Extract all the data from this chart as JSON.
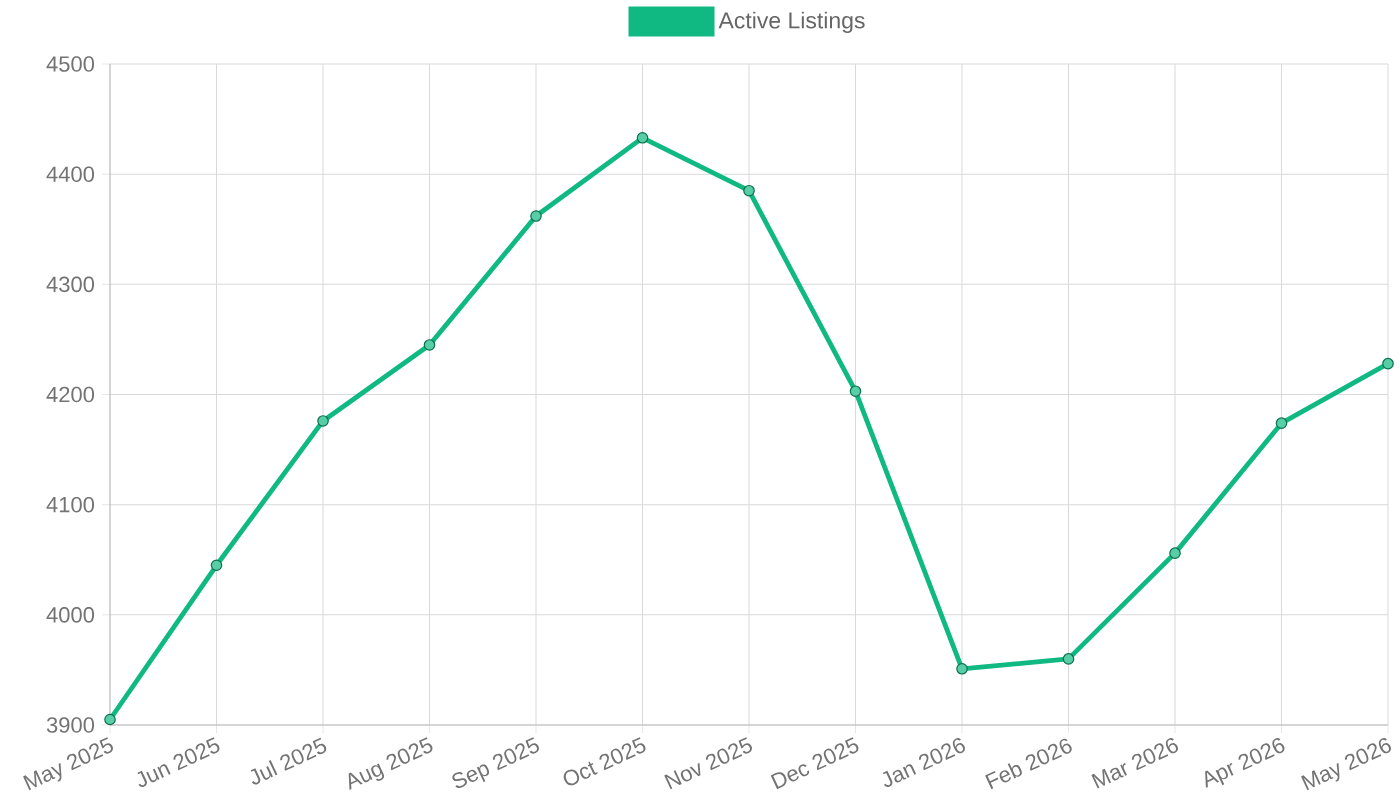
{
  "chart_data": {
    "type": "line",
    "categories": [
      "May 2025",
      "Jun 2025",
      "Jul 2025",
      "Aug 2025",
      "Sep 2025",
      "Oct 2025",
      "Nov 2025",
      "Dec 2025",
      "Jan 2026",
      "Feb 2026",
      "Mar 2026",
      "Apr 2026",
      "May 2026"
    ],
    "series": [
      {
        "name": "Active Listings",
        "color": "#10b981",
        "values": [
          3905,
          4045,
          4176,
          4245,
          4362,
          4433,
          4385,
          4203,
          3951,
          3960,
          4056,
          4174,
          4228
        ]
      }
    ],
    "ylim": [
      3900,
      4500
    ],
    "yticks": [
      3900,
      4000,
      4100,
      4200,
      4300,
      4400,
      4500
    ],
    "grid": true,
    "legend": "top",
    "marker": "circle",
    "line_style": "solid"
  }
}
